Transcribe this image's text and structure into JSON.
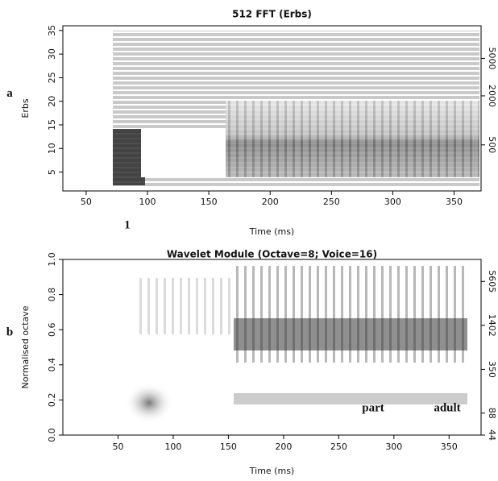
{
  "chart_data": [
    {
      "type": "spectrogram",
      "title": "512 FFT (Erbs)",
      "xlabel": "Time (ms)",
      "ylabel": "Erbs",
      "xlim": [
        31,
        372
      ],
      "xticks": [
        50,
        100,
        150,
        200,
        250,
        300,
        350
      ],
      "ylim": [
        1,
        36
      ],
      "yticks": [
        5,
        10,
        15,
        20,
        25,
        30,
        35
      ],
      "y2scale": "erb",
      "y2lim": [
        26,
        10780
      ],
      "y2ticks": [
        500,
        2000,
        5000
      ],
      "panel_label": "a",
      "annotations": [
        "1"
      ]
    },
    {
      "type": "spectrogram",
      "title": "Wavelet Module (Octave=8; Voice=16)",
      "xlabel": "Time (ms)",
      "ylabel": "Normalised octave",
      "xlim": [
        0,
        379
      ],
      "xticks": [
        50,
        100,
        150,
        200,
        250,
        300,
        350
      ],
      "ylim": [
        0,
        1
      ],
      "yticks": [
        {
          "value": 0,
          "label": "0.0"
        },
        0.2,
        0.4,
        0.6,
        0.8,
        {
          "value": 1,
          "label": "1.0"
        }
      ],
      "y2scale": "log2",
      "y2lim": [
        44,
        11210
      ],
      "y2ticks": [
        44,
        88,
        350,
        1402,
        5605
      ],
      "panel_label": "b",
      "annotations": [
        "part",
        "adult"
      ]
    }
  ]
}
